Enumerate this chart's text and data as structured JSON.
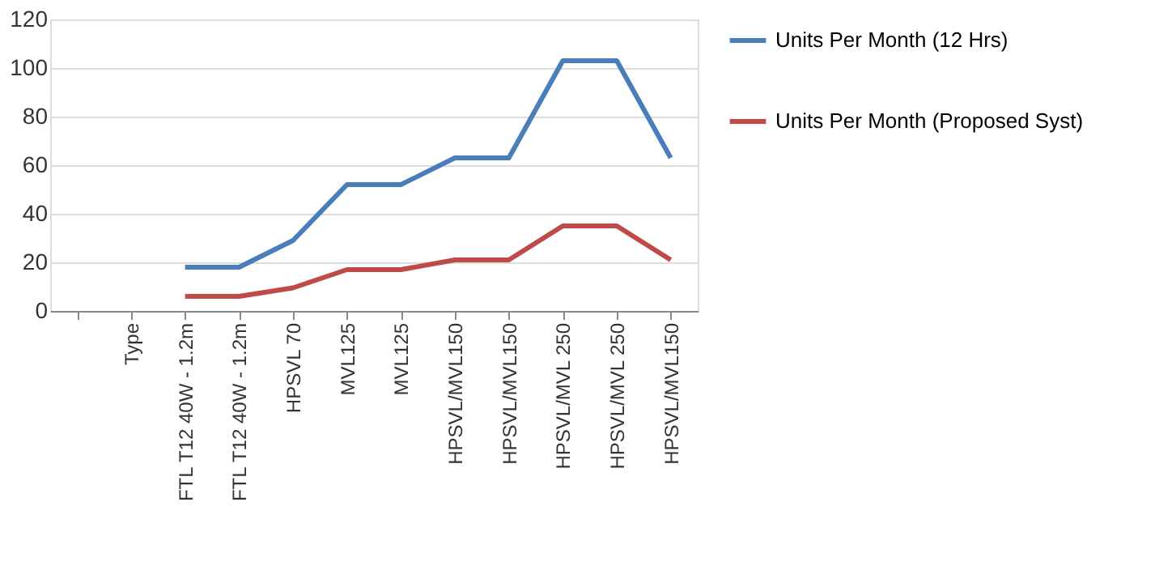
{
  "chart_data": {
    "type": "line",
    "categories": [
      null,
      "Type",
      "FTL T12 40W - 1.2m",
      "FTL T12 40W - 1.2m",
      "HPSVL 70",
      "MVL125",
      "MVL125",
      "HPSVL/MVL150",
      "HPSVL/MVL150",
      "HPSVL/MVL 250",
      "HPSVL/MVL 250",
      "HPSVL/MVL150"
    ],
    "series": [
      {
        "name": "Units Per Month (12 Hrs)",
        "color": "#4a7ebb",
        "values": [
          null,
          null,
          18,
          18,
          29,
          52,
          52,
          63,
          63,
          103,
          103,
          63
        ]
      },
      {
        "name": "Units Per Month (Proposed Syst)",
        "color": "#be4b48",
        "values": [
          null,
          null,
          6,
          6,
          9.5,
          17,
          17,
          21,
          21,
          35,
          35,
          21
        ]
      }
    ],
    "ylim": [
      0,
      120
    ],
    "yticks": [
      0,
      20,
      40,
      60,
      80,
      100,
      120
    ],
    "grid": "y",
    "legend": "right",
    "marker": "none",
    "line_style": "solid"
  }
}
